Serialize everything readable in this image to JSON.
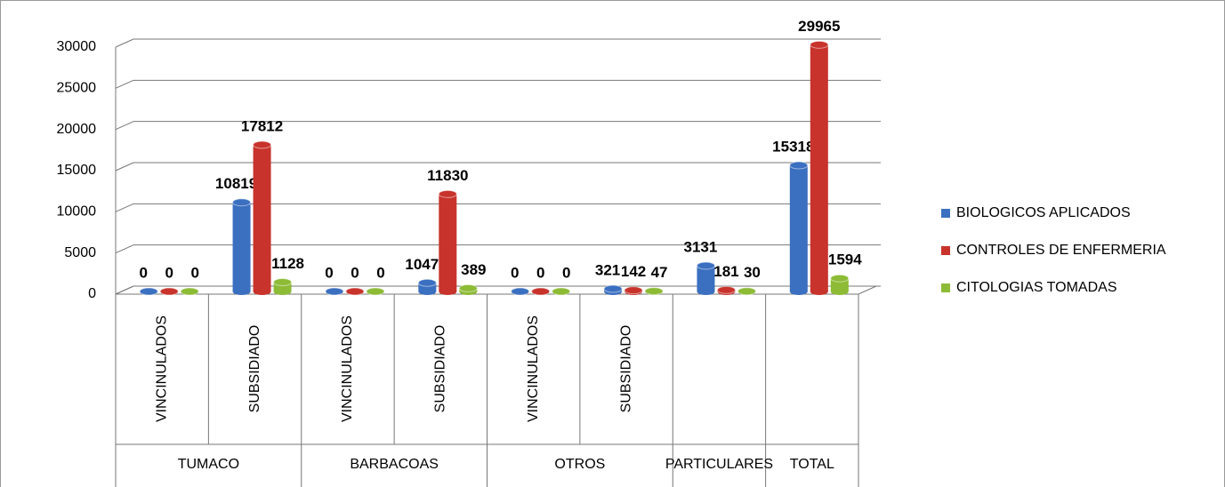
{
  "chart_data": {
    "type": "bar3d",
    "categories": [
      "VINCINULADOS",
      "SUBSIDIADO",
      "VINCINULADOS",
      "SUBSIDIADO",
      "VINCINULADOS",
      "SUBSIDIADO",
      null,
      null
    ],
    "groups": [
      {
        "name": "TUMACO",
        "size": 2
      },
      {
        "name": "BARBACOAS",
        "size": 2
      },
      {
        "name": "OTROS",
        "size": 2
      },
      {
        "name": "PARTICULARES",
        "size": 1
      },
      {
        "name": "TOTAL",
        "size": 1
      }
    ],
    "series": [
      {
        "name": "BIOLOGICOS APLICADOS",
        "color": "#3b6fc0",
        "values": [
          0,
          10819,
          0,
          1047,
          0,
          321,
          3131,
          15318
        ]
      },
      {
        "name": "CONTROLES DE ENFERMERIA",
        "color": "#c8332c",
        "values": [
          0,
          17812,
          0,
          11830,
          0,
          142,
          181,
          29965
        ]
      },
      {
        "name": "CITOLOGIAS TOMADAS",
        "color": "#8dbb36",
        "values": [
          0,
          1128,
          0,
          389,
          0,
          47,
          30,
          1594
        ]
      }
    ],
    "ylim": [
      0,
      30000
    ],
    "yticks": [
      0,
      5000,
      10000,
      15000,
      20000,
      25000,
      30000
    ],
    "grid": true,
    "legend": "right"
  }
}
